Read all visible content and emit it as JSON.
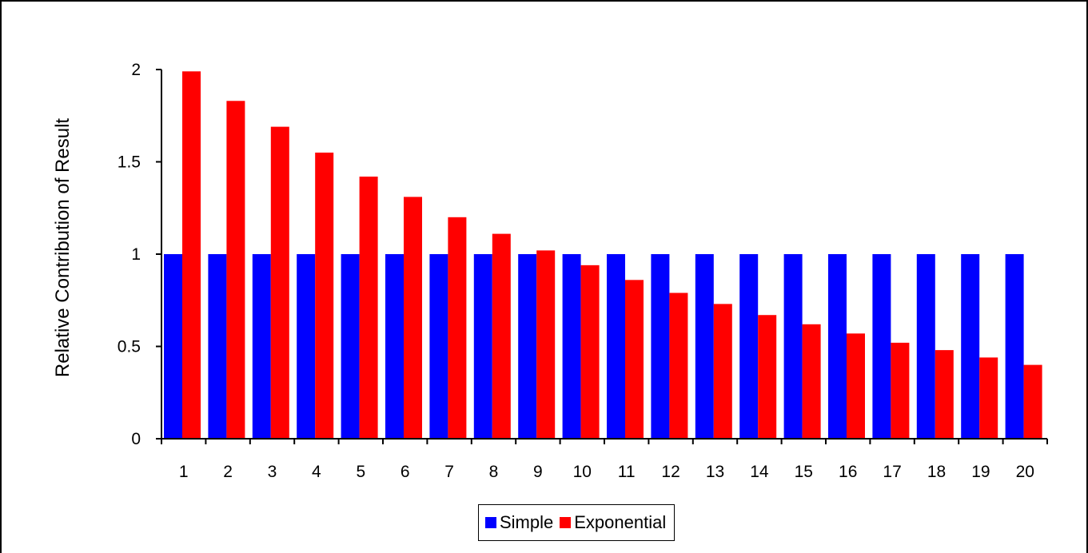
{
  "chart_data": {
    "type": "bar",
    "title": "",
    "xlabel": "",
    "ylabel": "Relative Contribution  of Result",
    "ylim": [
      0,
      2
    ],
    "yticks": [
      0,
      0.5,
      1,
      1.5,
      2
    ],
    "ytick_labels": [
      "0",
      "0.5",
      "1",
      "1.5",
      "2"
    ],
    "categories": [
      "1",
      "2",
      "3",
      "4",
      "5",
      "6",
      "7",
      "8",
      "9",
      "10",
      "11",
      "12",
      "13",
      "14",
      "15",
      "16",
      "17",
      "18",
      "19",
      "20"
    ],
    "series": [
      {
        "name": "Simple",
        "color": "#0000ff",
        "values": [
          1,
          1,
          1,
          1,
          1,
          1,
          1,
          1,
          1,
          1,
          1,
          1,
          1,
          1,
          1,
          1,
          1,
          1,
          1,
          1
        ]
      },
      {
        "name": "Exponential",
        "color": "#ff0000",
        "values": [
          1.99,
          1.83,
          1.69,
          1.55,
          1.42,
          1.31,
          1.2,
          1.11,
          1.02,
          0.94,
          0.86,
          0.79,
          0.73,
          0.67,
          0.62,
          0.57,
          0.52,
          0.48,
          0.44,
          0.4
        ]
      }
    ],
    "grid": false,
    "legend_position": "bottom"
  }
}
